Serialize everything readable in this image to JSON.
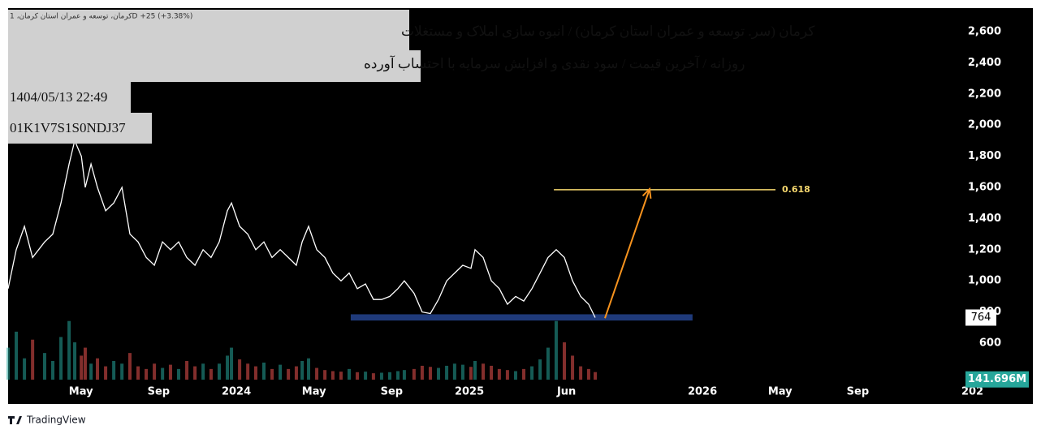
{
  "chart_data": {
    "type": "line",
    "legend_line": "کرمان، توسعه و عمران استان کرمان، 1D  +25 (+3.38%)",
    "title": "کرمان (سر. توسعه و عمران استان کرمان) / انبوه سازی املاک و مستغلات",
    "subtitle": "روزانه / آخرین قیمت / سود نقدی و افزایش سرمایه با احتساب آورده",
    "date": "1404/05/13 22:49",
    "id": "01K1V7S1S0NDJ37",
    "x": [
      -11.75,
      -11.33,
      -10.91,
      -10.49,
      -9.87,
      -9.45,
      -9.03,
      -8.61,
      -8.32,
      -7.98,
      -7.78,
      -7.48,
      -7.15,
      -6.73,
      -6.31,
      -5.89,
      -5.48,
      -5.06,
      -4.64,
      -4.22,
      -3.8,
      -3.39,
      -2.97,
      -2.55,
      -2.13,
      -1.71,
      -1.3,
      -0.88,
      -0.46,
      -0.25,
      0.17,
      0.59,
      1.0,
      1.42,
      1.84,
      2.26,
      2.68,
      3.09,
      3.39,
      3.72,
      4.14,
      4.56,
      4.97,
      5.39,
      5.81,
      6.23,
      6.65,
      7.06,
      7.48,
      7.9,
      8.32,
      8.65,
      9.15,
      9.57,
      9.99,
      10.41,
      10.83,
      11.24,
      11.66,
      12.08,
      12.29,
      12.71,
      13.13,
      13.54,
      13.96,
      14.38,
      14.8,
      15.22,
      15.64,
      16.05,
      16.47,
      16.89,
      17.31,
      17.73,
      18.14,
      18.48
    ],
    "series": [
      {
        "name": "کرمان",
        "color": "#ffffff",
        "values": [
          950,
          1200,
          1350,
          1150,
          1250,
          1300,
          1500,
          1750,
          1900,
          1800,
          1600,
          1750,
          1600,
          1450,
          1500,
          1600,
          1300,
          1250,
          1150,
          1100,
          1250,
          1200,
          1250,
          1150,
          1100,
          1200,
          1150,
          1250,
          1450,
          1500,
          1350,
          1300,
          1200,
          1250,
          1150,
          1200,
          1150,
          1100,
          1250,
          1350,
          1200,
          1150,
          1050,
          1000,
          1050,
          950,
          980,
          880,
          880,
          900,
          950,
          1000,
          920,
          800,
          790,
          880,
          1000,
          1050,
          1100,
          1080,
          1200,
          1150,
          1000,
          950,
          850,
          900,
          870,
          950,
          1050,
          1150,
          1200,
          1150,
          1000,
          900,
          850,
          764
        ]
      },
      {
        "name": "Volume",
        "axis": "y2",
        "color": "#26a69a",
        "down_color": "#ef5350",
        "values": [
          600,
          900,
          400,
          750,
          500,
          350,
          800,
          1100,
          700,
          450,
          600,
          300,
          400,
          250,
          350,
          300,
          500,
          250,
          200,
          300,
          220,
          280,
          200,
          350,
          250,
          300,
          200,
          300,
          450,
          600,
          380,
          300,
          250,
          320,
          200,
          280,
          200,
          250,
          350,
          400,
          220,
          180,
          160,
          150,
          200,
          140,
          150,
          120,
          130,
          140,
          160,
          180,
          200,
          260,
          240,
          220,
          260,
          300,
          280,
          240,
          350,
          300,
          260,
          200,
          180,
          160,
          200,
          250,
          380,
          600,
          1100,
          700,
          450,
          250,
          200,
          141.696
        ],
        "value_labels": [
          null,
          null,
          null,
          null,
          null,
          null,
          null,
          null,
          null,
          null,
          null,
          null,
          null,
          null,
          null,
          null,
          null,
          null,
          null,
          null,
          null,
          null,
          null,
          null,
          null,
          null,
          null,
          null,
          null,
          null,
          null,
          null,
          null,
          null,
          null,
          null,
          null,
          null,
          null,
          null,
          null,
          null,
          null,
          null,
          null,
          null,
          null,
          null,
          null,
          null,
          null,
          null,
          null,
          null,
          null,
          null,
          null,
          null,
          null,
          null,
          null,
          null,
          null,
          null,
          null,
          null,
          null,
          null,
          null,
          null,
          null,
          null,
          null,
          null,
          null,
          "141.696M"
        ]
      }
    ],
    "xlim": [
      -11.75,
      37.46
    ],
    "xticks": [
      {
        "value": -8,
        "label": "May"
      },
      {
        "value": -4,
        "label": "Sep"
      },
      {
        "value": 0,
        "label": "2024"
      },
      {
        "value": 4,
        "label": "May"
      },
      {
        "value": 8,
        "label": "Sep"
      },
      {
        "value": 12,
        "label": "2025"
      },
      {
        "value": 17,
        "label": "Jun"
      },
      {
        "value": 24,
        "label": "2026"
      },
      {
        "value": 28,
        "label": "May"
      },
      {
        "value": 32,
        "label": "Sep"
      },
      {
        "value": 37.9,
        "label": "202"
      }
    ],
    "ylim": [
      355,
      2751
    ],
    "yticks": [
      600,
      800,
      {
        "value": 1000,
        "label": "1,000"
      },
      {
        "value": 1200,
        "label": "1,200"
      },
      {
        "value": 1400,
        "label": "1,400"
      },
      {
        "value": 1600,
        "label": "1,600"
      },
      {
        "value": 1800,
        "label": "1,800"
      },
      {
        "value": 2000,
        "label": "2,000"
      },
      {
        "value": 2200,
        "label": "2,200"
      },
      {
        "value": 2400,
        "label": "2,400"
      },
      {
        "value": 2600,
        "label": "2,600"
      }
    ],
    "y2lim": [
      0,
      1400
    ],
    "annotations": {
      "zone": {
        "x": [
          5.89,
          23.49
        ],
        "y": [
          745,
          785
        ],
        "color": "#1f3a7a"
      },
      "level": {
        "x": [
          16.35,
          27.76
        ],
        "y": 1585,
        "label": "0.618",
        "color": "#f5d76e"
      },
      "arrow": {
        "x": [
          18.98,
          21.28
        ],
        "y": [
          760,
          1590
        ],
        "color": "#f7931e"
      }
    }
  },
  "footer": "TradingView"
}
